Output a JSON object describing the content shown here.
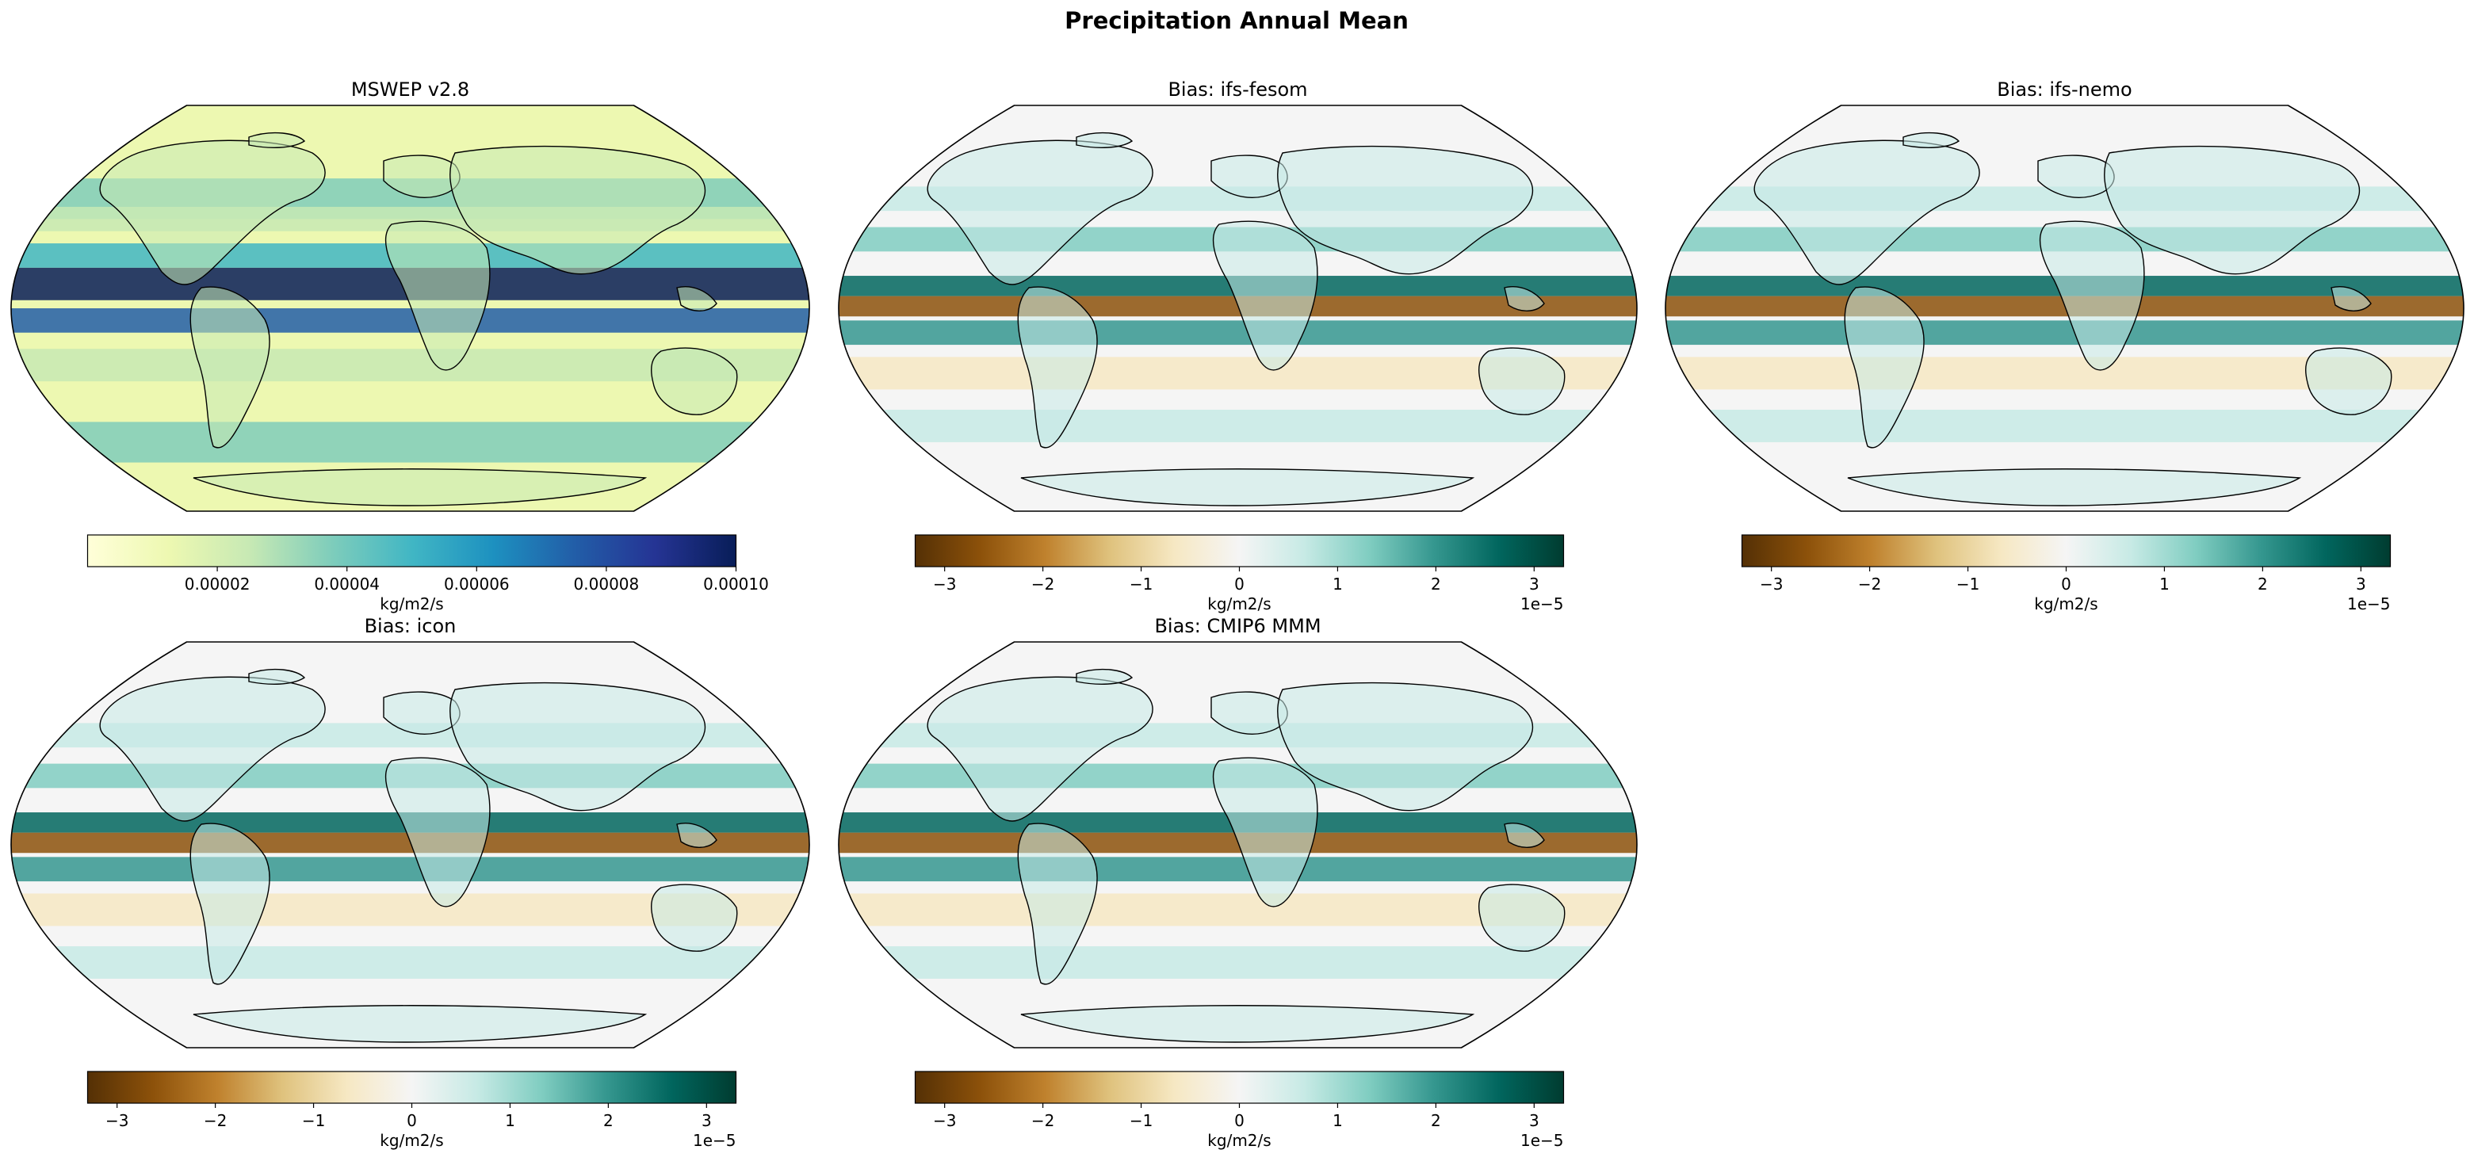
{
  "figure": {
    "title": "Precipitation Annual Mean"
  },
  "panels": [
    {
      "id": "mswep",
      "title": "MSWEP v2.8",
      "colormap": "YlGnBu",
      "colorbar": {
        "label": "kg/m2/s",
        "vmin": 0.0,
        "vmax": 0.0001,
        "ticks": [
          "0.00002",
          "0.00004",
          "0.00006",
          "0.00008",
          "0.00010"
        ],
        "tick_values": [
          2e-05,
          4e-05,
          6e-05,
          8e-05,
          0.0001
        ],
        "offset_text": "",
        "colors": [
          "#ffffd9",
          "#edf8b1",
          "#c7e9b4",
          "#7fcdbb",
          "#41b6c4",
          "#1d91c0",
          "#225ea8",
          "#253494",
          "#081d58"
        ]
      }
    },
    {
      "id": "ifs-fesom",
      "title": "Bias: ifs-fesom",
      "colormap": "BrBG",
      "colorbar": {
        "label": "kg/m2/s",
        "vmin": -3.3,
        "vmax": 3.3,
        "ticks": [
          "−3",
          "−2",
          "−1",
          "0",
          "1",
          "2",
          "3"
        ],
        "tick_values": [
          -3,
          -2,
          -1,
          0,
          1,
          2,
          3
        ],
        "offset_text": "1e−5",
        "colors": [
          "#543005",
          "#8c510a",
          "#bf812d",
          "#dfc27d",
          "#f6e8c3",
          "#f5f5f5",
          "#c7eae5",
          "#80cdc1",
          "#35978f",
          "#01665e",
          "#003c30"
        ]
      }
    },
    {
      "id": "ifs-nemo",
      "title": "Bias: ifs-nemo",
      "colormap": "BrBG",
      "colorbar": {
        "label": "kg/m2/s",
        "vmin": -3.3,
        "vmax": 3.3,
        "ticks": [
          "−3",
          "−2",
          "−1",
          "0",
          "1",
          "2",
          "3"
        ],
        "tick_values": [
          -3,
          -2,
          -1,
          0,
          1,
          2,
          3
        ],
        "offset_text": "1e−5",
        "colors": [
          "#543005",
          "#8c510a",
          "#bf812d",
          "#dfc27d",
          "#f6e8c3",
          "#f5f5f5",
          "#c7eae5",
          "#80cdc1",
          "#35978f",
          "#01665e",
          "#003c30"
        ]
      }
    },
    {
      "id": "icon",
      "title": "Bias: icon",
      "colormap": "BrBG",
      "colorbar": {
        "label": "kg/m2/s",
        "vmin": -3.3,
        "vmax": 3.3,
        "ticks": [
          "−3",
          "−2",
          "−1",
          "0",
          "1",
          "2",
          "3"
        ],
        "tick_values": [
          -3,
          -2,
          -1,
          0,
          1,
          2,
          3
        ],
        "offset_text": "1e−5",
        "colors": [
          "#543005",
          "#8c510a",
          "#bf812d",
          "#dfc27d",
          "#f6e8c3",
          "#f5f5f5",
          "#c7eae5",
          "#80cdc1",
          "#35978f",
          "#01665e",
          "#003c30"
        ]
      }
    },
    {
      "id": "cmip6-mmm",
      "title": "Bias: CMIP6 MMM",
      "colormap": "BrBG",
      "colorbar": {
        "label": "kg/m2/s",
        "vmin": -3.3,
        "vmax": 3.3,
        "ticks": [
          "−3",
          "−2",
          "−1",
          "0",
          "1",
          "2",
          "3"
        ],
        "tick_values": [
          -3,
          -2,
          -1,
          0,
          1,
          2,
          3
        ],
        "offset_text": "1e−5",
        "colors": [
          "#543005",
          "#8c510a",
          "#bf812d",
          "#dfc27d",
          "#f6e8c3",
          "#f5f5f5",
          "#c7eae5",
          "#80cdc1",
          "#35978f",
          "#01665e",
          "#003c30"
        ]
      }
    }
  ]
}
